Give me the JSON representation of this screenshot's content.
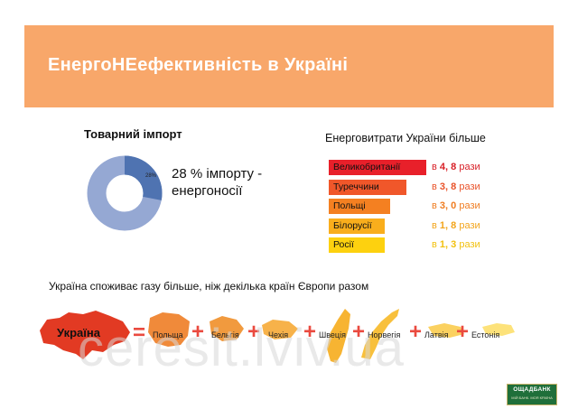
{
  "slide": {
    "title": "ЕнергоНЕефективність в Україні"
  },
  "import": {
    "title": "Товарний імпорт",
    "percent_label": "28%",
    "percent_value": 28,
    "text_line1": "28 % імпорту -",
    "text_line2": "енергоносії",
    "colors": {
      "share": "#4f73b1",
      "rest": "#95a8d3"
    }
  },
  "energy": {
    "title": "Енерговитрати України більше",
    "items": [
      {
        "country": "Великобританії",
        "prefix": "в",
        "value": "4, 8",
        "suffix": "рази",
        "color": "#e8202a",
        "text_color": "#d81f26"
      },
      {
        "country": "Туреччини",
        "prefix": "в",
        "value": "3, 8",
        "suffix": "рази",
        "color": "#f0572a",
        "text_color": "#e9532a"
      },
      {
        "country": "Польщі",
        "prefix": "в",
        "value": "3, 0",
        "suffix": "рази",
        "color": "#f48021",
        "text_color": "#ef7d22"
      },
      {
        "country": "Білорусії",
        "prefix": "в",
        "value": "1, 8",
        "suffix": "рази",
        "color": "#f9ae1c",
        "text_color": "#f3a51c"
      },
      {
        "country": "Росії",
        "prefix": "в",
        "value": "1, 3",
        "suffix": "рази",
        "color": "#fdd10f",
        "text_color": "#f2c10f"
      }
    ]
  },
  "gas": {
    "title": "Україна споживає газу більше, ніж декілька країн Європи разом",
    "ukraine": "Україна",
    "equals": "=",
    "plus": "+",
    "countries": [
      "Польща",
      "Бельгія",
      "Чехія",
      "Швеція",
      "Норвегія",
      "Латвія",
      "Естонія"
    ]
  },
  "watermark": "ceresit.lviv.ua",
  "logo": {
    "name": "ОЩАДБАНК",
    "slogan": "МІЙ БАНК. МОЯ КРАЇНА"
  }
}
